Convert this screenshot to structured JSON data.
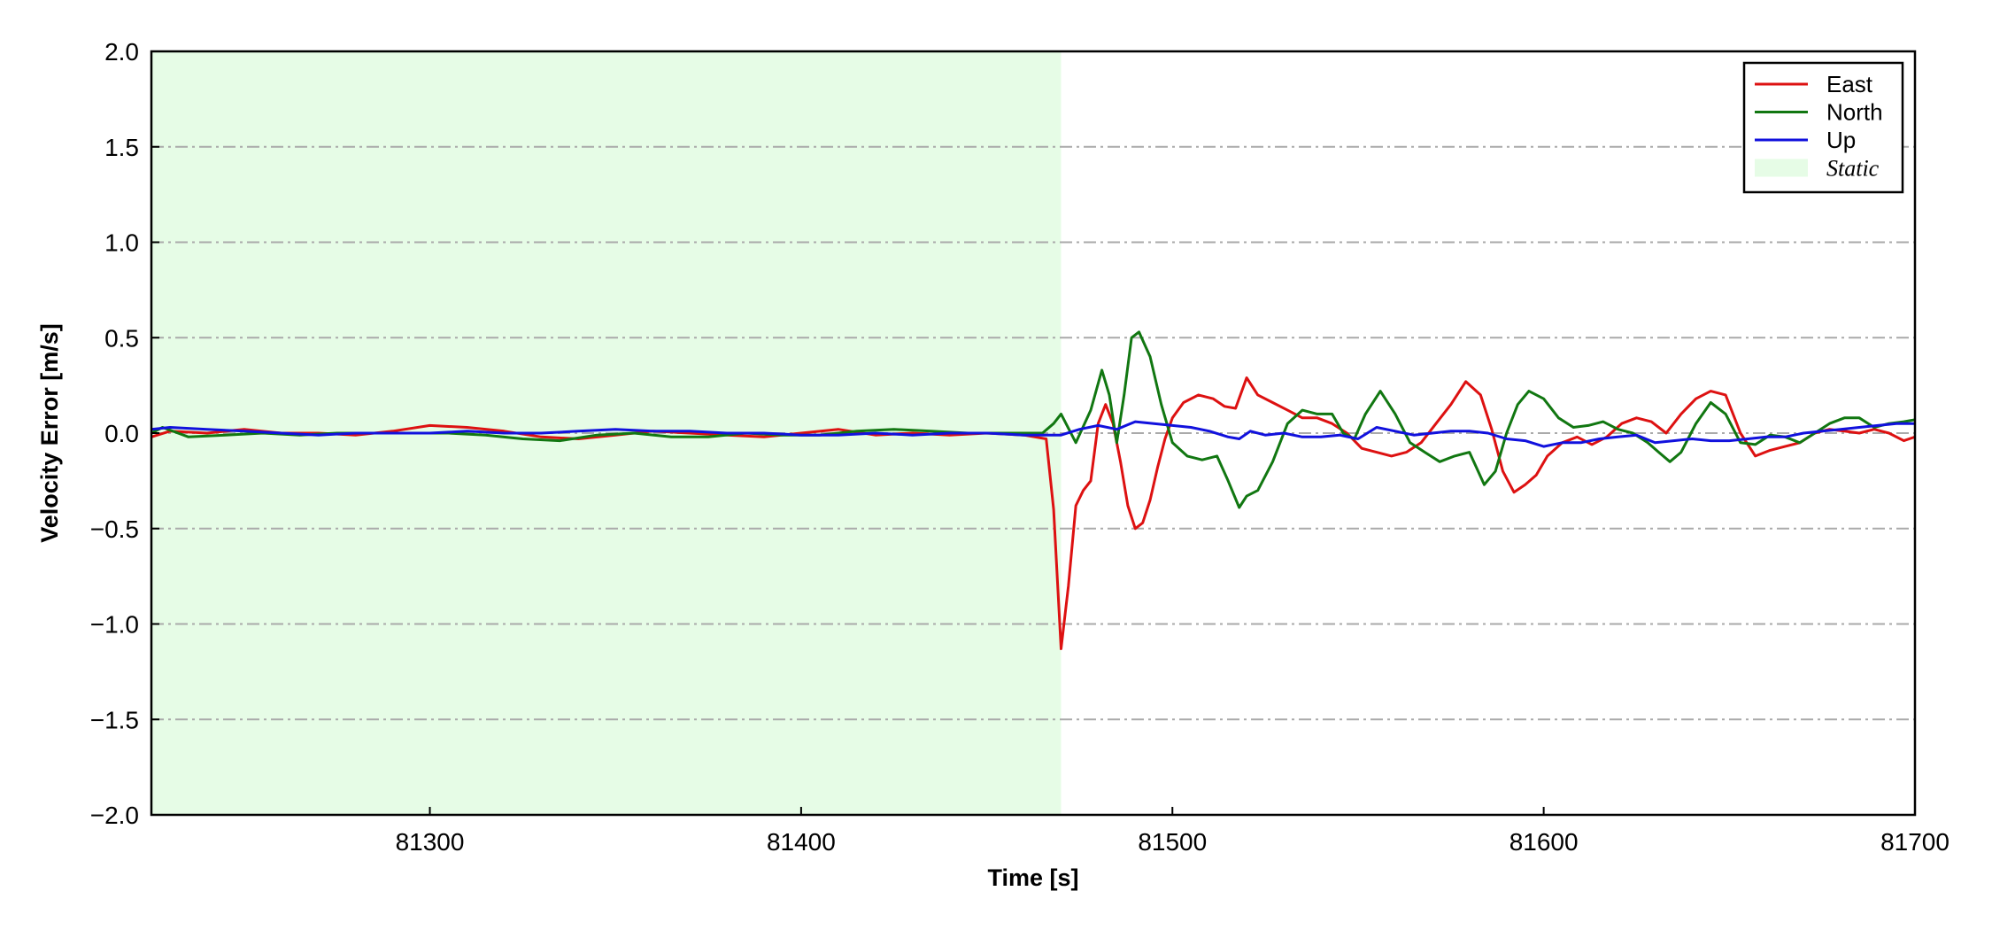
{
  "chart_data": {
    "type": "line",
    "xlabel": "Time [s]",
    "ylabel": "Velocity Error [m/s]",
    "xlim": [
      81225,
      81700
    ],
    "ylim": [
      -2.0,
      2.0
    ],
    "xticks": [
      81300,
      81400,
      81500,
      81600,
      81700
    ],
    "xtick_labels": [
      "81300",
      "81400",
      "81500",
      "81600",
      "81700"
    ],
    "yticks": [
      2.0,
      1.5,
      1.0,
      0.5,
      0.0,
      -0.5,
      -1.0,
      -1.5,
      -2.0
    ],
    "ytick_labels": [
      "2.0",
      "1.5",
      "1.0",
      "0.5",
      "0.0",
      "−0.5",
      "−1.0",
      "−1.5",
      "−2.0"
    ],
    "grid": "horizontal dash-dot",
    "legend_position": "top-right",
    "shaded_region": {
      "name": "Static",
      "x_start": 81225,
      "x_end": 81470,
      "color": "#e6fce6"
    },
    "series": [
      {
        "name": "East",
        "color": "#dd1111",
        "x": [
          81225,
          81230,
          81240,
          81250,
          81260,
          81270,
          81280,
          81290,
          81300,
          81310,
          81320,
          81330,
          81340,
          81350,
          81360,
          81370,
          81380,
          81390,
          81400,
          81410,
          81420,
          81430,
          81440,
          81450,
          81460,
          81466,
          81468,
          81470,
          81472,
          81474,
          81476,
          81478,
          81480,
          81482,
          81484,
          81486,
          81488,
          81490,
          81492,
          81494,
          81496,
          81498,
          81500,
          81503,
          81507,
          81511,
          81514,
          81517,
          81520,
          81523,
          81527,
          81531,
          81535,
          81539,
          81543,
          81547,
          81551,
          81555,
          81559,
          81563,
          81567,
          81571,
          81575,
          81579,
          81583,
          81586,
          81589,
          81592,
          81595,
          81598,
          81601,
          81605,
          81609,
          81613,
          81617,
          81621,
          81625,
          81629,
          81633,
          81637,
          81641,
          81645,
          81649,
          81653,
          81657,
          81661,
          81665,
          81669,
          81673,
          81677,
          81681,
          81685,
          81689,
          81693,
          81697,
          81700
        ],
        "values": [
          -0.02,
          0.01,
          0.0,
          0.02,
          0.0,
          0.0,
          -0.01,
          0.01,
          0.04,
          0.03,
          0.01,
          -0.02,
          -0.03,
          -0.01,
          0.01,
          0.0,
          -0.01,
          -0.02,
          0.0,
          0.02,
          -0.01,
          0.0,
          -0.01,
          0.0,
          -0.01,
          -0.03,
          -0.4,
          -1.13,
          -0.8,
          -0.38,
          -0.3,
          -0.25,
          0.05,
          0.15,
          0.05,
          -0.15,
          -0.38,
          -0.5,
          -0.47,
          -0.35,
          -0.18,
          -0.03,
          0.08,
          0.16,
          0.2,
          0.18,
          0.14,
          0.13,
          0.29,
          0.2,
          0.16,
          0.12,
          0.08,
          0.08,
          0.05,
          0.0,
          -0.08,
          -0.1,
          -0.12,
          -0.1,
          -0.05,
          0.05,
          0.15,
          0.27,
          0.2,
          0.02,
          -0.2,
          -0.31,
          -0.27,
          -0.22,
          -0.12,
          -0.05,
          -0.02,
          -0.06,
          -0.02,
          0.05,
          0.08,
          0.06,
          0.0,
          0.1,
          0.18,
          0.22,
          0.2,
          0.0,
          -0.12,
          -0.09,
          -0.07,
          -0.05,
          0.0,
          0.02,
          0.01,
          0.0,
          0.02,
          0.0,
          -0.04,
          -0.02
        ]
      },
      {
        "name": "North",
        "color": "#117711",
        "x": [
          81225,
          81228,
          81235,
          81245,
          81255,
          81265,
          81275,
          81285,
          81295,
          81305,
          81315,
          81325,
          81335,
          81345,
          81355,
          81365,
          81375,
          81385,
          81395,
          81405,
          81415,
          81425,
          81435,
          81445,
          81455,
          81465,
          81468,
          81470,
          81474,
          81478,
          81481,
          81483,
          81485,
          81487,
          81489,
          81491,
          81494,
          81497,
          81500,
          81504,
          81508,
          81512,
          81515,
          81518,
          81520,
          81523,
          81527,
          81531,
          81535,
          81539,
          81543,
          81546,
          81549,
          81552,
          81556,
          81560,
          81564,
          81568,
          81572,
          81576,
          81580,
          81584,
          81587,
          81590,
          81593,
          81596,
          81600,
          81604,
          81608,
          81612,
          81616,
          81620,
          81624,
          81628,
          81631,
          81634,
          81637,
          81641,
          81645,
          81649,
          81653,
          81657,
          81661,
          81665,
          81669,
          81673,
          81677,
          81681,
          81685,
          81689,
          81693,
          81697,
          81700
        ],
        "values": [
          0.0,
          0.03,
          -0.02,
          -0.01,
          0.0,
          -0.01,
          0.0,
          0.0,
          0.0,
          0.0,
          -0.01,
          -0.03,
          -0.04,
          -0.01,
          0.0,
          -0.02,
          -0.02,
          0.0,
          -0.01,
          -0.01,
          0.01,
          0.02,
          0.01,
          0.0,
          0.0,
          0.0,
          0.05,
          0.1,
          -0.05,
          0.12,
          0.33,
          0.2,
          -0.05,
          0.2,
          0.5,
          0.53,
          0.4,
          0.15,
          -0.05,
          -0.12,
          -0.14,
          -0.12,
          -0.25,
          -0.39,
          -0.33,
          -0.3,
          -0.15,
          0.05,
          0.12,
          0.1,
          0.1,
          0.0,
          -0.03,
          0.1,
          0.22,
          0.1,
          -0.05,
          -0.1,
          -0.15,
          -0.12,
          -0.1,
          -0.27,
          -0.2,
          0.0,
          0.15,
          0.22,
          0.18,
          0.08,
          0.03,
          0.04,
          0.06,
          0.02,
          0.0,
          -0.05,
          -0.1,
          -0.15,
          -0.1,
          0.05,
          0.16,
          0.1,
          -0.05,
          -0.06,
          -0.01,
          -0.02,
          -0.05,
          0.0,
          0.05,
          0.08,
          0.08,
          0.03,
          0.05,
          0.06,
          0.07
        ]
      },
      {
        "name": "Up",
        "color": "#1111dd",
        "x": [
          81225,
          81230,
          81240,
          81250,
          81260,
          81270,
          81280,
          81290,
          81300,
          81310,
          81320,
          81330,
          81340,
          81350,
          81360,
          81370,
          81380,
          81390,
          81400,
          81410,
          81420,
          81430,
          81440,
          81450,
          81460,
          81470,
          81475,
          81480,
          81485,
          81490,
          81495,
          81500,
          81505,
          81510,
          81515,
          81518,
          81521,
          81525,
          81530,
          81535,
          81540,
          81545,
          81550,
          81555,
          81560,
          81565,
          81570,
          81575,
          81580,
          81585,
          81590,
          81595,
          81600,
          81605,
          81610,
          81615,
          81620,
          81625,
          81630,
          81635,
          81640,
          81645,
          81650,
          81655,
          81660,
          81665,
          81670,
          81675,
          81680,
          81685,
          81690,
          81695,
          81700
        ],
        "values": [
          0.02,
          0.03,
          0.02,
          0.01,
          0.0,
          -0.01,
          0.0,
          0.0,
          0.0,
          0.01,
          0.0,
          0.0,
          0.01,
          0.02,
          0.01,
          0.01,
          0.0,
          0.0,
          -0.01,
          -0.01,
          0.0,
          -0.01,
          0.0,
          0.0,
          -0.01,
          -0.01,
          0.02,
          0.04,
          0.02,
          0.06,
          0.05,
          0.04,
          0.03,
          0.01,
          -0.02,
          -0.03,
          0.01,
          -0.01,
          0.0,
          -0.02,
          -0.02,
          -0.01,
          -0.03,
          0.03,
          0.01,
          -0.01,
          0.0,
          0.01,
          0.01,
          0.0,
          -0.03,
          -0.04,
          -0.07,
          -0.05,
          -0.05,
          -0.03,
          -0.02,
          -0.01,
          -0.05,
          -0.04,
          -0.03,
          -0.04,
          -0.04,
          -0.03,
          -0.02,
          -0.02,
          0.0,
          0.01,
          0.02,
          0.03,
          0.04,
          0.05,
          0.05
        ]
      }
    ]
  }
}
